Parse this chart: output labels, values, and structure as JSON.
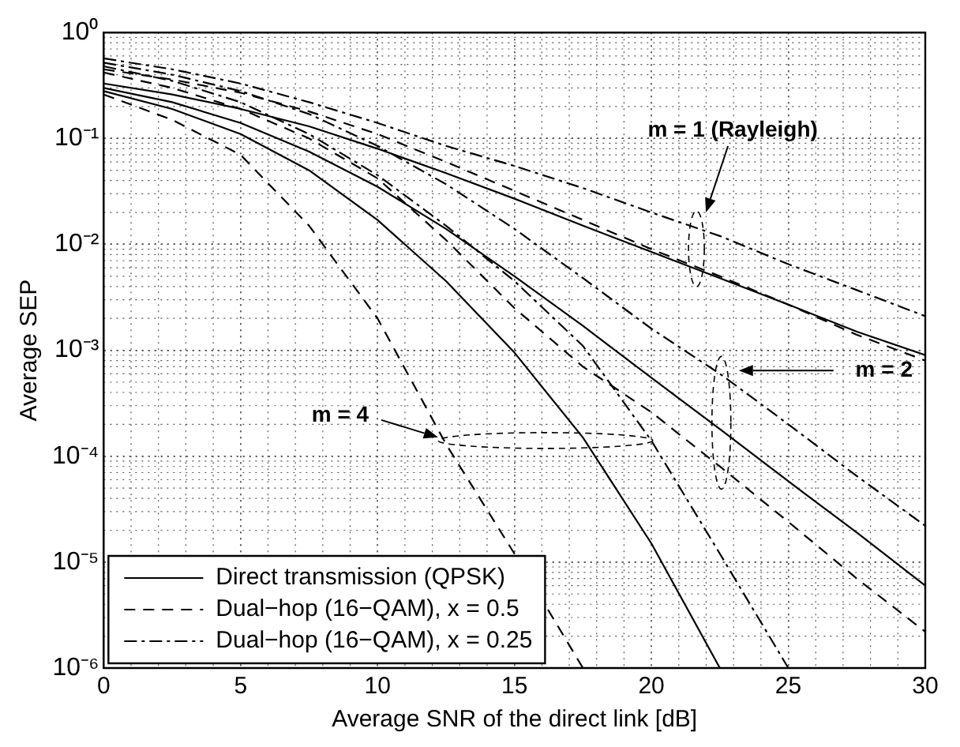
{
  "chart_data": {
    "type": "line",
    "xlabel": "Average SNR of the direct link [dB]",
    "ylabel": "Average SEP",
    "x": [
      0,
      2.5,
      5,
      7.5,
      10,
      12.5,
      15,
      17.5,
      20,
      22.5,
      25,
      27.5,
      30
    ],
    "series": [
      {
        "name": "Direct transmission (QPSK)",
        "color": "#000000",
        "line_style": "solid",
        "values": [
          0.33,
          0.26,
          0.19,
          0.13,
          0.08,
          0.047,
          0.027,
          0.015,
          0.0085,
          0.0048,
          0.0027,
          0.0015,
          0.0009
        ]
      },
      {
        "color": "#000000",
        "line_style": "solid",
        "values": [
          0.3,
          0.22,
          0.14,
          0.075,
          0.035,
          0.014,
          0.005,
          0.0017,
          0.00055,
          0.00018,
          5.8e-05,
          1.9e-05,
          6e-06
        ]
      },
      {
        "color": "#000000",
        "line_style": "solid",
        "values": [
          0.28,
          0.19,
          0.11,
          0.05,
          0.017,
          0.0045,
          0.00095,
          0.00015,
          1.5e-05,
          1e-06,
          null,
          null,
          null
        ]
      },
      {
        "name": "Dual−hop (16−QAM), x = 0.5",
        "color": "#000000",
        "line_style": "dashed",
        "values": [
          0.45,
          0.36,
          0.27,
          0.18,
          0.11,
          0.06,
          0.032,
          0.017,
          0.009,
          0.005,
          0.0027,
          0.0014,
          0.0008
        ]
      },
      {
        "color": "#000000",
        "line_style": "dashed",
        "values": [
          0.42,
          0.3,
          0.19,
          0.1,
          0.042,
          0.011,
          0.0025,
          0.0007,
          0.00026,
          8e-05,
          2.4e-05,
          7e-06,
          2.2e-06
        ]
      },
      {
        "color": "#000000",
        "line_style": "dashed",
        "values": [
          0.26,
          0.15,
          0.07,
          0.015,
          0.002,
          0.00013,
          1.2e-05,
          1e-06,
          null,
          null,
          null,
          null,
          null
        ]
      },
      {
        "name": "Dual−hop (16−QAM), x = 0.25",
        "color": "#000000",
        "line_style": "dashdot",
        "values": [
          0.57,
          0.45,
          0.33,
          0.22,
          0.14,
          0.085,
          0.055,
          0.034,
          0.02,
          0.012,
          0.0065,
          0.0037,
          0.0021
        ]
      },
      {
        "color": "#000000",
        "line_style": "dashdot",
        "values": [
          0.52,
          0.4,
          0.28,
          0.17,
          0.085,
          0.037,
          0.014,
          0.0048,
          0.0016,
          0.0006,
          0.0002,
          6.5e-05,
          2.2e-05
        ]
      },
      {
        "color": "#000000",
        "line_style": "dashdot",
        "values": [
          0.48,
          0.35,
          0.22,
          0.11,
          0.045,
          0.015,
          0.0045,
          0.0011,
          0.00014,
          1.2e-05,
          1e-06,
          null,
          null
        ]
      }
    ],
    "annotations": [
      "m = 1 (Rayleigh)",
      "m = 2",
      "m = 4"
    ],
    "log": "y",
    "xlim": [
      0,
      30
    ],
    "ylim": [
      1e-06,
      1
    ],
    "xticks": [
      0,
      5,
      10,
      15,
      20,
      25,
      30
    ],
    "yticks": [
      {
        "value": 1e-06,
        "label": "10⁻⁶"
      },
      {
        "value": 1e-05,
        "label": "10⁻⁵"
      },
      {
        "value": 0.0001,
        "label": "10⁻⁴"
      },
      {
        "value": 0.001,
        "label": "10⁻³"
      },
      {
        "value": 0.01,
        "label": "10⁻²"
      },
      {
        "value": 0.1,
        "label": "10⁻¹"
      },
      {
        "value": 1,
        "label": "10⁰"
      }
    ],
    "grid": true,
    "legend": "bottom left"
  }
}
